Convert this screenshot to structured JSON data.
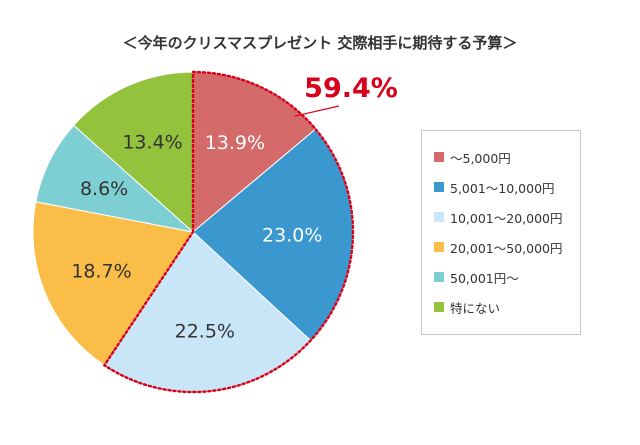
{
  "chart_data": {
    "type": "pie",
    "title": "＜今年のクリスマスプレゼント 交際相手に期待する予算＞",
    "slices": [
      {
        "label": "〜5,000円",
        "value": 13.9,
        "value_label": "13.9%",
        "color": "#d46a6a",
        "label_color": "#ffffff"
      },
      {
        "label": "5,001〜10,000円",
        "value": 23.0,
        "value_label": "23.0%",
        "color": "#3a98cf",
        "label_color": "#ffffff"
      },
      {
        "label": "10,001〜20,000円",
        "value": 22.5,
        "value_label": "22.5%",
        "color": "#c9e6f8",
        "label_color": "#333333"
      },
      {
        "label": "20,001〜50,000円",
        "value": 18.7,
        "value_label": "18.7%",
        "color": "#f9bd48",
        "label_color": "#333333"
      },
      {
        "label": "50,001円〜",
        "value": 8.6,
        "value_label": "8.6%",
        "color": "#7ecfd3",
        "label_color": "#333333"
      },
      {
        "label": "特にない",
        "value": 13.4,
        "value_label": "13.4%",
        "color": "#93c23c",
        "label_color": "#333333"
      }
    ],
    "highlight": {
      "slices": [
        0,
        1,
        2
      ],
      "value_label": "59.4%",
      "color": "#d9001b"
    },
    "legend_position": "right"
  }
}
